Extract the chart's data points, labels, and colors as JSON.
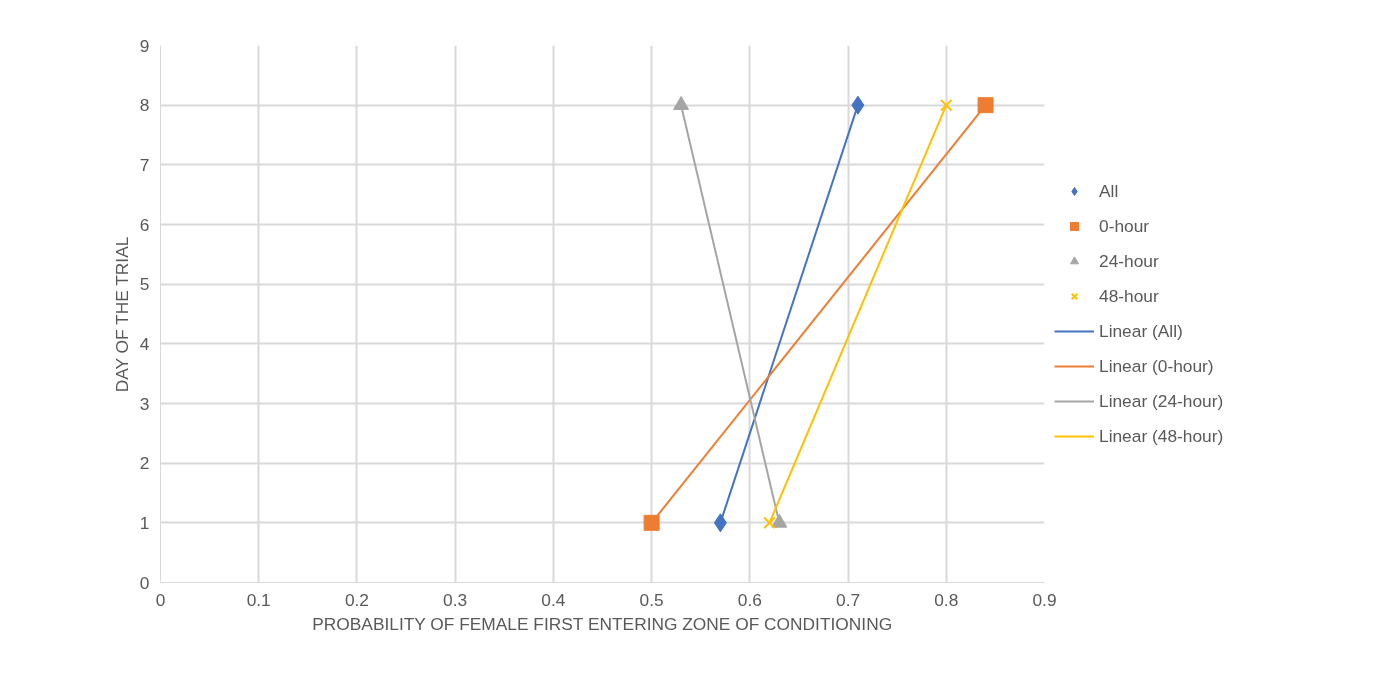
{
  "chart_data": {
    "type": "scatter",
    "xlabel": "PROBABILITY OF FEMALE FIRST ENTERING ZONE OF CONDITIONING",
    "ylabel": "DAY OF THE TRIAL",
    "xlim": [
      0,
      0.9
    ],
    "ylim": [
      0,
      9
    ],
    "xticks": [
      0,
      0.1,
      0.2,
      0.3,
      0.4,
      0.5,
      0.6,
      0.7,
      0.8,
      0.9
    ],
    "yticks": [
      0,
      1,
      2,
      3,
      4,
      5,
      6,
      7,
      8,
      9
    ],
    "grid": true,
    "legend": "right",
    "series": [
      {
        "name": "All",
        "marker": "diamond",
        "color": "#4472c4",
        "x": [
          0.57,
          0.71
        ],
        "values": [
          1,
          8
        ]
      },
      {
        "name": "0-hour",
        "marker": "square",
        "color": "#ed7d31",
        "x": [
          0.5,
          0.84
        ],
        "values": [
          1,
          8
        ]
      },
      {
        "name": "24-hour",
        "marker": "triangle",
        "color": "#a5a5a5",
        "x": [
          0.63,
          0.53
        ],
        "values": [
          1,
          8
        ]
      },
      {
        "name": "48-hour",
        "marker": "cross",
        "color": "#ffc000",
        "x": [
          0.62,
          0.8
        ],
        "values": [
          1,
          8
        ]
      },
      {
        "name": "Linear (All)",
        "type": "line",
        "marker": "none",
        "color": "#4472c4",
        "x": [
          0.57,
          0.71
        ],
        "values": [
          1,
          8
        ]
      },
      {
        "name": "Linear (0-hour)",
        "type": "line",
        "marker": "none",
        "color": "#ed7d31",
        "x": [
          0.5,
          0.84
        ],
        "values": [
          1,
          8
        ]
      },
      {
        "name": "Linear (24-hour)",
        "type": "line",
        "marker": "none",
        "color": "#a5a5a5",
        "x": [
          0.63,
          0.53
        ],
        "values": [
          1,
          8
        ]
      },
      {
        "name": "Linear (48-hour)",
        "type": "line",
        "marker": "none",
        "color": "#ffc000",
        "x": [
          0.62,
          0.8
        ],
        "values": [
          1,
          8
        ]
      }
    ]
  }
}
